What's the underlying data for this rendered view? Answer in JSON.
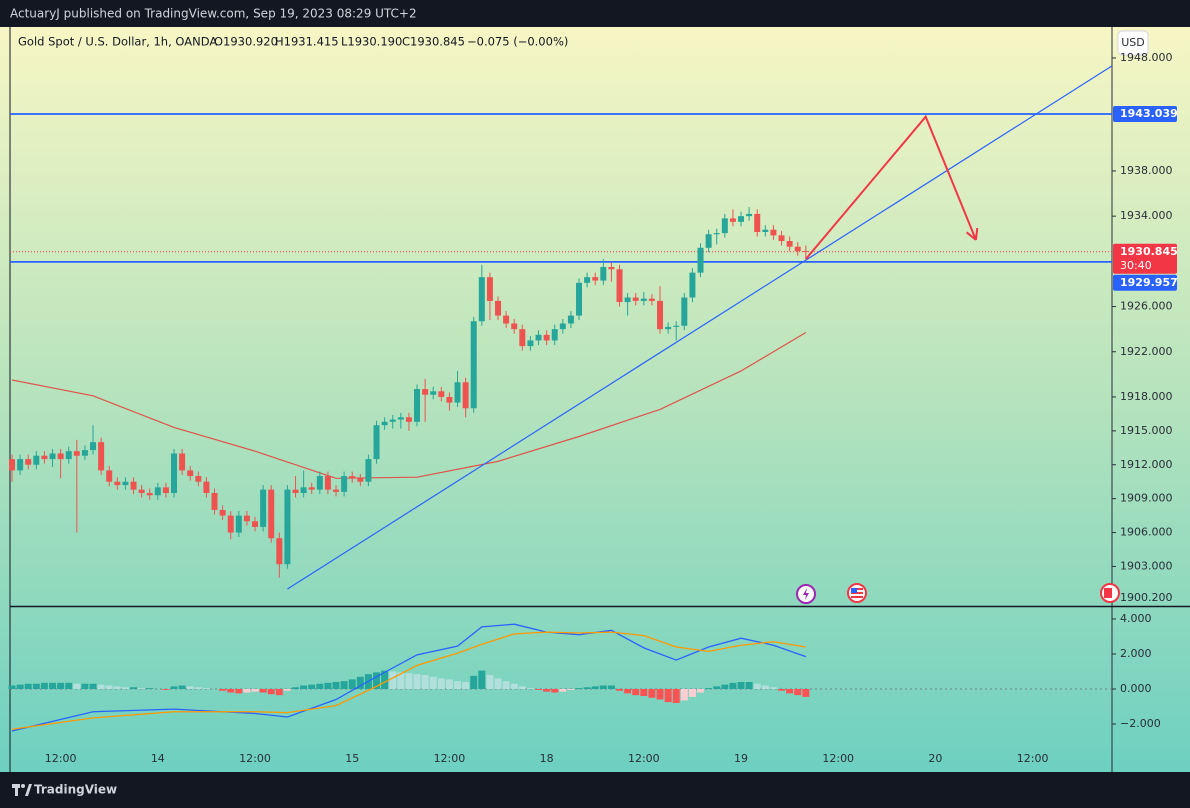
{
  "header": {
    "text": "ActuaryJ published on TradingView.com, Sep 19, 2023 08:29 UTC+2"
  },
  "footer": {
    "brand": "TradingView"
  },
  "chart_data": [
    {
      "type": "candlestick",
      "legend": {
        "symbol": "Gold Spot / U.S. Dollar, 1h, OANDA",
        "open": "O1930.920",
        "high": "H1931.415",
        "low": "L1930.190",
        "close": "C1930.845",
        "change": "−0.075 (−0.00%)"
      },
      "currency": "USD",
      "up_color": "#26a69a",
      "down_color": "#ef5350",
      "xlim": [
        -0.25,
        135.8
      ],
      "xticks": [
        {
          "value": 6,
          "label": "12:00"
        },
        {
          "value": 18,
          "label": "14"
        },
        {
          "value": 30,
          "label": "12:00"
        },
        {
          "value": 42,
          "label": "15"
        },
        {
          "value": 54,
          "label": "12:00"
        },
        {
          "value": 66,
          "label": "18"
        },
        {
          "value": 78,
          "label": "12:00"
        },
        {
          "value": 90,
          "label": "19"
        },
        {
          "value": 102,
          "label": "12:00"
        },
        {
          "value": 114,
          "label": "20"
        },
        {
          "value": 126,
          "label": "12:00"
        }
      ],
      "ylim": [
        1899.5,
        1950.74
      ],
      "yticks": [
        {
          "value": 1948,
          "label": "1948.000"
        },
        {
          "value": 1938,
          "label": "1938.000"
        },
        {
          "value": 1934,
          "label": "1934.000"
        },
        {
          "value": 1926,
          "label": "1926.000"
        },
        {
          "value": 1922,
          "label": "1922.000"
        },
        {
          "value": 1918,
          "label": "1918.000"
        },
        {
          "value": 1915,
          "label": "1915.000"
        },
        {
          "value": 1912,
          "label": "1912.000"
        },
        {
          "value": 1909,
          "label": "1909.000"
        },
        {
          "value": 1906,
          "label": "1906.000"
        },
        {
          "value": 1903,
          "label": "1903.000"
        },
        {
          "value": 1900.2,
          "label": "1900.200"
        }
      ],
      "ohlc": [
        [
          1912.5,
          1912.9,
          1910.5,
          1911.5
        ],
        [
          1911.5,
          1912.9,
          1911.1,
          1912.5
        ],
        [
          1912.5,
          1912.9,
          1911.6,
          1912
        ],
        [
          1912,
          1913.2,
          1911.6,
          1912.8
        ],
        [
          1912.8,
          1913.2,
          1912.1,
          1912.5
        ],
        [
          1912.5,
          1913.4,
          1911.8,
          1913
        ],
        [
          1913,
          1913.4,
          1910.8,
          1912.5
        ],
        [
          1912.5,
          1913.6,
          1912.1,
          1913.2
        ],
        [
          1913.2,
          1914.2,
          1906,
          1912.8
        ],
        [
          1912.8,
          1913.7,
          1912.4,
          1913.3
        ],
        [
          1913.3,
          1915.5,
          1912.9,
          1914
        ],
        [
          1914,
          1914.4,
          1911.1,
          1911.5
        ],
        [
          1911.5,
          1911.9,
          1910.1,
          1910.5
        ],
        [
          1910.5,
          1910.9,
          1909.8,
          1910.2
        ],
        [
          1910.2,
          1910.9,
          1909.8,
          1910.5
        ],
        [
          1910.5,
          1910.9,
          1909.4,
          1909.8
        ],
        [
          1909.8,
          1910.2,
          1909.1,
          1909.5
        ],
        [
          1909.5,
          1909.9,
          1908.9,
          1909.3
        ],
        [
          1909.3,
          1910.4,
          1908.9,
          1910
        ],
        [
          1910,
          1910.4,
          1909.1,
          1909.5
        ],
        [
          1909.5,
          1913.4,
          1909.1,
          1913
        ],
        [
          1913,
          1913.4,
          1911.1,
          1911.5
        ],
        [
          1911.5,
          1911.9,
          1910.6,
          1911
        ],
        [
          1911,
          1911.4,
          1910.1,
          1910.5
        ],
        [
          1910.5,
          1910.9,
          1909.1,
          1909.5
        ],
        [
          1909.5,
          1909.9,
          1907.6,
          1908
        ],
        [
          1908,
          1908.4,
          1907.1,
          1907.5
        ],
        [
          1907.5,
          1907.9,
          1905.4,
          1906
        ],
        [
          1906,
          1907.9,
          1905.6,
          1907.5
        ],
        [
          1907.5,
          1907.9,
          1906.6,
          1907
        ],
        [
          1907,
          1907.4,
          1906.1,
          1906.5
        ],
        [
          1906.5,
          1910.2,
          1906.1,
          1909.8
        ],
        [
          1909.8,
          1910.2,
          1905.1,
          1905.5
        ],
        [
          1905.5,
          1906,
          1902,
          1903.2
        ],
        [
          1903.2,
          1910.2,
          1902.8,
          1909.8
        ],
        [
          1909.8,
          1911,
          1909.1,
          1909.5
        ],
        [
          1909.5,
          1911.5,
          1909.1,
          1910
        ],
        [
          1910,
          1910.4,
          1909.4,
          1909.8
        ],
        [
          1909.8,
          1911.4,
          1909.4,
          1911
        ],
        [
          1911,
          1911.4,
          1909.4,
          1909.8
        ],
        [
          1909.8,
          1910.2,
          1909.2,
          1909.6
        ],
        [
          1909.6,
          1911.4,
          1909.2,
          1911
        ],
        [
          1911,
          1911.4,
          1910.4,
          1910.8
        ],
        [
          1910.8,
          1911.2,
          1910.1,
          1910.5
        ],
        [
          1910.5,
          1912.9,
          1910.1,
          1912.5
        ],
        [
          1912.5,
          1915.9,
          1912.1,
          1915.5
        ],
        [
          1915.5,
          1916.2,
          1915.1,
          1915.8
        ],
        [
          1915.8,
          1916.4,
          1915.2,
          1916
        ],
        [
          1916,
          1916.6,
          1915.2,
          1916.2
        ],
        [
          1916.2,
          1916.6,
          1915,
          1915.8
        ],
        [
          1915.8,
          1919.1,
          1915.4,
          1918.7
        ],
        [
          1918.7,
          1919.6,
          1915.8,
          1918.2
        ],
        [
          1918.2,
          1918.9,
          1917.8,
          1918.5
        ],
        [
          1918.5,
          1918.9,
          1917.6,
          1918
        ],
        [
          1918,
          1918.4,
          1916.8,
          1917.5
        ],
        [
          1917.5,
          1920.3,
          1917.1,
          1919.3
        ],
        [
          1919.3,
          1919.7,
          1916.2,
          1917
        ],
        [
          1917,
          1925.1,
          1916.6,
          1924.7
        ],
        [
          1924.7,
          1929.7,
          1924.3,
          1928.6
        ],
        [
          1928.6,
          1929,
          1924.8,
          1926.5
        ],
        [
          1926.5,
          1926.9,
          1924.8,
          1925.2
        ],
        [
          1925.2,
          1925.6,
          1924.1,
          1924.5
        ],
        [
          1924.5,
          1924.9,
          1923.6,
          1924
        ],
        [
          1924,
          1924.4,
          1922.1,
          1922.5
        ],
        [
          1922.5,
          1923.4,
          1922.1,
          1923
        ],
        [
          1923,
          1923.9,
          1922.6,
          1923.5
        ],
        [
          1923.5,
          1923.9,
          1922.6,
          1923
        ],
        [
          1923,
          1924.4,
          1922.6,
          1924
        ],
        [
          1924,
          1924.9,
          1923.6,
          1924.5
        ],
        [
          1924.5,
          1925.6,
          1924.1,
          1925.2
        ],
        [
          1925.2,
          1928.5,
          1924.8,
          1928.1
        ],
        [
          1928.1,
          1929,
          1927.7,
          1928.6
        ],
        [
          1928.6,
          1929,
          1927.9,
          1928.3
        ],
        [
          1928.3,
          1930.2,
          1927.9,
          1929.5
        ],
        [
          1929.5,
          1929.9,
          1928.2,
          1929.3
        ],
        [
          1929.3,
          1929.7,
          1926,
          1926.4
        ],
        [
          1926.4,
          1927.2,
          1925.2,
          1926.8
        ],
        [
          1926.8,
          1927.2,
          1926.1,
          1926.5
        ],
        [
          1926.5,
          1927.3,
          1926.1,
          1926.7
        ],
        [
          1926.7,
          1927.1,
          1926.1,
          1926.5
        ],
        [
          1926.5,
          1927.8,
          1923.6,
          1924
        ],
        [
          1924,
          1924.6,
          1923.6,
          1924.2
        ],
        [
          1924.2,
          1924.7,
          1923,
          1924.3
        ],
        [
          1924.3,
          1927.2,
          1923.9,
          1926.8
        ],
        [
          1926.8,
          1929.4,
          1926.4,
          1929
        ],
        [
          1929,
          1931.6,
          1928.6,
          1931.2
        ],
        [
          1931.2,
          1932.8,
          1930.8,
          1932.4
        ],
        [
          1932.4,
          1932.9,
          1931.5,
          1932.5
        ],
        [
          1932.5,
          1934.2,
          1932.1,
          1933.8
        ],
        [
          1933.8,
          1934.6,
          1933.1,
          1933.5
        ],
        [
          1933.5,
          1934.4,
          1933.1,
          1934
        ],
        [
          1934,
          1934.8,
          1933.6,
          1934.2
        ],
        [
          1934.2,
          1934.6,
          1932.2,
          1932.6
        ],
        [
          1932.6,
          1933.2,
          1932.2,
          1932.8
        ],
        [
          1932.8,
          1933.2,
          1931.9,
          1932.3
        ],
        [
          1932.3,
          1932.7,
          1931.4,
          1931.8
        ],
        [
          1931.8,
          1932.2,
          1930.9,
          1931.3
        ],
        [
          1931.3,
          1931.7,
          1930.5,
          1930.9
        ],
        [
          1930.92,
          1931.415,
          1930.19,
          1930.845
        ]
      ],
      "moving_average": {
        "color": "#e0524a",
        "x": [
          0,
          10,
          20,
          30,
          40,
          50,
          60,
          70,
          80,
          90,
          98
        ],
        "values": [
          1919.5,
          1918.1,
          1915.3,
          1913.2,
          1910.8,
          1910.9,
          1912.3,
          1914.5,
          1916.9,
          1920.3,
          1923.7
        ]
      },
      "trendline": {
        "color": "#2962ff",
        "x": [
          34,
          135.8
        ],
        "y": [
          1901,
          1947.3
        ]
      },
      "levels": [
        {
          "value": 1943.039,
          "color": "#2962ff"
        },
        {
          "value": 1929.957,
          "color": "#2962ff"
        }
      ],
      "last_price": {
        "value": 1930.845,
        "countdown": "30:40",
        "color": "#f23645"
      },
      "arrow": {
        "color": "#f23645",
        "x": [
          98,
          112.8,
          119
        ],
        "y": [
          1930.2,
          1942.8,
          1931.9
        ]
      }
    },
    {
      "type": "macd",
      "ylim": [
        -4.74,
        4.74
      ],
      "yticks": [
        {
          "value": 4,
          "label": "4.000"
        },
        {
          "value": 2,
          "label": "2.000"
        },
        {
          "value": 0,
          "label": "0.000"
        },
        {
          "value": -2,
          "label": "−2.000"
        }
      ],
      "histogram": {
        "colors": {
          "positive_rising": "#26a69a",
          "positive_falling": "#b2dfdb",
          "negative_falling": "#ff5252",
          "negative_rising": "#ffcdd2"
        },
        "values": [
          0.2,
          0.25,
          0.3,
          0.3,
          0.35,
          0.35,
          0.35,
          0.35,
          0.3,
          0.3,
          0.3,
          0.25,
          0.2,
          0.15,
          0.1,
          0.1,
          0.05,
          0.05,
          0,
          -0.05,
          0.15,
          0.2,
          0.15,
          0.1,
          0.05,
          0,
          -0.1,
          -0.2,
          -0.25,
          -0.2,
          -0.15,
          -0.2,
          -0.3,
          -0.35,
          -0.1,
          0.1,
          0.2,
          0.25,
          0.3,
          0.35,
          0.4,
          0.45,
          0.55,
          0.7,
          0.85,
          0.95,
          1.05,
          1.0,
          0.95,
          0.9,
          0.85,
          0.8,
          0.7,
          0.6,
          0.55,
          0.45,
          0.4,
          0.75,
          1.05,
          0.8,
          0.6,
          0.45,
          0.3,
          0.15,
          0.05,
          -0.05,
          -0.15,
          -0.2,
          -0.15,
          -0.05,
          0.05,
          0.1,
          0.15,
          0.2,
          0.2,
          -0.1,
          -0.25,
          -0.35,
          -0.4,
          -0.5,
          -0.6,
          -0.75,
          -0.8,
          -0.65,
          -0.45,
          -0.2,
          0.05,
          0.15,
          0.25,
          0.35,
          0.4,
          0.4,
          0.3,
          0.2,
          0.1,
          -0.1,
          -0.25,
          -0.35,
          -0.45
        ]
      },
      "macd": {
        "color": "#2962ff",
        "x": [
          0,
          10,
          20,
          30,
          34,
          40,
          45,
          50,
          55,
          58,
          62,
          66,
          70,
          74,
          78,
          82,
          86,
          90,
          94,
          98
        ],
        "values": [
          -2.4,
          -1.3,
          -1.15,
          -1.4,
          -1.6,
          -0.6,
          0.7,
          1.95,
          2.45,
          3.55,
          3.7,
          3.25,
          3.1,
          3.35,
          2.35,
          1.65,
          2.4,
          2.9,
          2.5,
          1.85
        ]
      },
      "signal": {
        "color": "#ff9800",
        "x": [
          0,
          10,
          20,
          30,
          34,
          40,
          45,
          50,
          55,
          58,
          62,
          66,
          70,
          74,
          78,
          82,
          86,
          90,
          94,
          98
        ],
        "values": [
          -2.3,
          -1.65,
          -1.3,
          -1.3,
          -1.35,
          -0.95,
          0.15,
          1.35,
          2.05,
          2.55,
          3.15,
          3.25,
          3.2,
          3.25,
          3.05,
          2.4,
          2.15,
          2.5,
          2.7,
          2.4
        ]
      }
    }
  ]
}
